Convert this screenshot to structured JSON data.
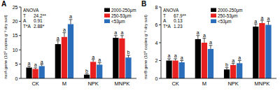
{
  "chart_data": [
    {
      "type": "bar",
      "title": "A",
      "y_label": "nxrA gene (10⁶ copies g⁻¹ dry soil)",
      "categories": [
        "CK",
        "M",
        "NPK",
        "MNPK"
      ],
      "series": [
        {
          "name": "2000-250μm",
          "color": "#000000",
          "values": [
            3.8,
            12,
            1.3,
            14.2
          ],
          "errors": [
            0.5,
            1.2,
            0.3,
            0.8
          ],
          "letters": [
            "a",
            "a",
            "b",
            "a"
          ]
        },
        {
          "name": "250-53μm",
          "color": "#e8201f",
          "values": [
            3.3,
            14.5,
            5.8,
            14
          ],
          "errors": [
            0.4,
            1.5,
            0.8,
            1.0
          ],
          "letters": [
            "a",
            "a",
            "a",
            "a"
          ]
        },
        {
          "name": "<53μm",
          "color": "#2a6ebb",
          "values": [
            4.3,
            19,
            4.8,
            7.3
          ],
          "errors": [
            0.6,
            1.6,
            0.7,
            0.8
          ],
          "letters": [
            "a",
            "a",
            "a",
            "b"
          ]
        }
      ],
      "ylim": [
        0,
        25
      ],
      "yticks": [
        0,
        5,
        10,
        15,
        20,
        25
      ],
      "legend": "upper right",
      "annotation": {
        "title": "ANOVA",
        "rows": [
          {
            "label": "T",
            "value": "24.2**"
          },
          {
            "label": "A",
            "value": "0.91"
          },
          {
            "label": "T*A",
            "value": "2.88*"
          }
        ]
      }
    },
    {
      "type": "bar",
      "title": "B",
      "y_label": "nxrB gene (10⁶ copies g⁻¹ dry soil)",
      "categories": [
        "CK",
        "M",
        "NPK",
        "MNPK"
      ],
      "series": [
        {
          "name": "2000-250μm",
          "color": "#000000",
          "values": [
            2.0,
            4.4,
            1.0,
            5.8
          ],
          "errors": [
            0.2,
            0.4,
            0.2,
            0.3
          ],
          "letters": [
            "a",
            "a",
            "b",
            "a"
          ]
        },
        {
          "name": "250-53μm",
          "color": "#e8201f",
          "values": [
            2.0,
            4.0,
            1.5,
            6.2
          ],
          "errors": [
            0.2,
            0.5,
            0.2,
            0.3
          ],
          "letters": [
            "a",
            "a",
            "a",
            "a"
          ]
        },
        {
          "name": "<53μm",
          "color": "#2a6ebb",
          "values": [
            1.8,
            3.3,
            1.7,
            6.0
          ],
          "errors": [
            0.2,
            0.4,
            0.3,
            0.4
          ],
          "letters": [
            "a",
            "a",
            "a",
            "a"
          ]
        }
      ],
      "ylim": [
        0,
        8
      ],
      "yticks": [
        0,
        2,
        4,
        6,
        8
      ],
      "legend": "upper center",
      "annotation": {
        "title": "ANOVA",
        "rows": [
          {
            "label": "T",
            "value": "67.9**"
          },
          {
            "label": "A",
            "value": "0.13"
          },
          {
            "label": "T*A",
            "value": "1.23"
          }
        ]
      }
    }
  ]
}
